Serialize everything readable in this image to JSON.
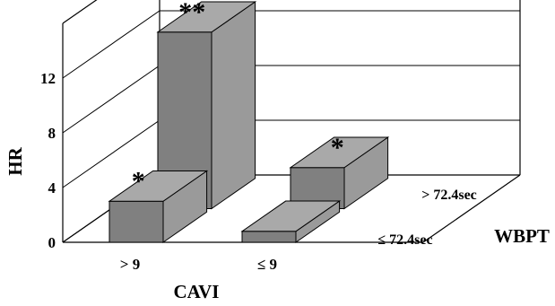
{
  "chart_data": {
    "type": "bar",
    "style": "3d-stacked-depth",
    "ylabel": "HR",
    "xlabel": "CAVI",
    "zlabel": "WBPT",
    "categories": [
      "> 9",
      "≤ 9"
    ],
    "depth_categories": [
      "≤ 72.4sec",
      "> 72.4sec"
    ],
    "yticks": [
      "0",
      "4",
      "8",
      "12"
    ],
    "ylim": [
      0,
      16
    ],
    "grid": true,
    "series": [
      {
        "name": "≤ 72.4sec",
        "values": [
          3.0,
          0.8
        ],
        "annotations": [
          "*",
          ""
        ]
      },
      {
        "name": "> 72.4sec",
        "values": [
          12.9,
          3.0
        ],
        "annotations": [
          "**",
          "*"
        ]
      }
    ],
    "colors": {
      "bar_front": "#808080",
      "bar_side": "#9a9a9a",
      "bar_top": "#a9a9a9",
      "lines": "#000000"
    }
  }
}
